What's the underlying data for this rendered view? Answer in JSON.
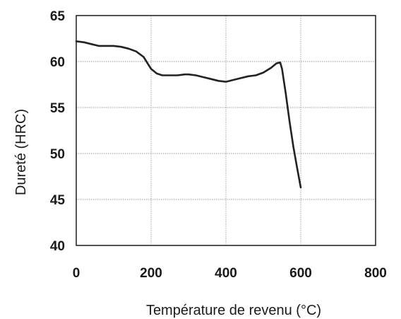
{
  "chart_data": {
    "type": "line",
    "title": "",
    "xlabel": "Température de revenu (°C)",
    "ylabel": "Dureté (HRC)",
    "xlim": [
      0,
      800
    ],
    "ylim": [
      40,
      65
    ],
    "xticks": [
      "0",
      "200",
      "400",
      "600",
      "800"
    ],
    "yticks": [
      "40",
      "45",
      "50",
      "55",
      "60",
      "65"
    ],
    "grid": true,
    "legend": "none",
    "series": [
      {
        "color": "#222222",
        "x": [
          0,
          20,
          40,
          60,
          80,
          100,
          120,
          140,
          160,
          180,
          200,
          215,
          230,
          250,
          270,
          290,
          300,
          320,
          340,
          360,
          380,
          400,
          420,
          440,
          460,
          480,
          500,
          520,
          535,
          545,
          550,
          560,
          570,
          580,
          590,
          600
        ],
        "y": [
          62.2,
          62.1,
          61.9,
          61.7,
          61.7,
          61.7,
          61.6,
          61.4,
          61.1,
          60.5,
          59.2,
          58.7,
          58.5,
          58.5,
          58.5,
          58.6,
          58.6,
          58.5,
          58.3,
          58.1,
          57.9,
          57.8,
          58.0,
          58.2,
          58.4,
          58.5,
          58.8,
          59.3,
          59.8,
          59.9,
          59.2,
          56.5,
          53.5,
          50.8,
          48.5,
          46.3
        ]
      }
    ]
  }
}
